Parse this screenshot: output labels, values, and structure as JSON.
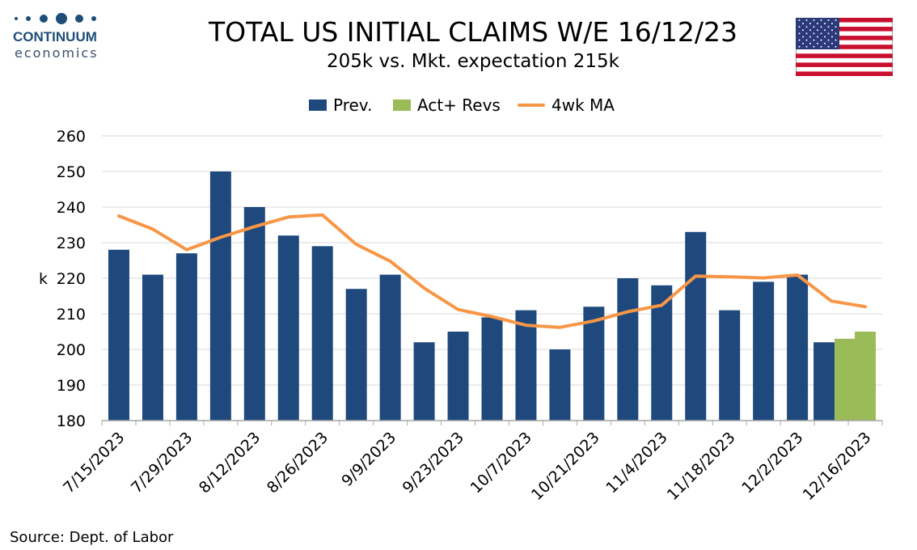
{
  "header": {
    "title": "TOTAL US INITIAL CLAIMS W/E 16/12/23",
    "subtitle": "205k vs. Mkt. expectation 215k"
  },
  "logo": {
    "brand": "CONTINUUM",
    "sub": "economics",
    "color": "#1f4e79"
  },
  "flag_icon": "us-flag-icon",
  "footer": {
    "source": "Source: Dept. of Labor"
  },
  "chart_data": {
    "type": "bar",
    "title": "TOTAL US INITIAL CLAIMS W/E 16/12/23",
    "subtitle": "205k vs. Mkt. expectation 215k",
    "ylabel": "k",
    "xlabel": "",
    "ylim": [
      180,
      260
    ],
    "yticks": [
      180,
      190,
      200,
      210,
      220,
      230,
      240,
      250,
      260
    ],
    "grid": true,
    "legend": "top-center",
    "categories": [
      "7/15/2023",
      "7/22/2023",
      "7/29/2023",
      "8/5/2023",
      "8/12/2023",
      "8/19/2023",
      "8/26/2023",
      "9/2/2023",
      "9/9/2023",
      "9/16/2023",
      "9/23/2023",
      "9/30/2023",
      "10/7/2023",
      "10/14/2023",
      "10/21/2023",
      "10/28/2023",
      "11/4/2023",
      "11/11/2023",
      "11/18/2023",
      "11/25/2023",
      "12/2/2023",
      "12/9/2023",
      "12/16/2023"
    ],
    "tick_labels": [
      "7/15/2023",
      "7/29/2023",
      "8/12/2023",
      "8/26/2023",
      "9/9/2023",
      "9/23/2023",
      "10/7/2023",
      "10/21/2023",
      "11/4/2023",
      "11/18/2023",
      "12/2/2023",
      "12/16/2023"
    ],
    "series": [
      {
        "name": "Prev.",
        "kind": "bar",
        "color": "#1f497d",
        "values": [
          228,
          221,
          227,
          250,
          240,
          232,
          229,
          217,
          221,
          202,
          205,
          209,
          211,
          200,
          212,
          220,
          218,
          233,
          211,
          219,
          221,
          202,
          null
        ]
      },
      {
        "name": "Act+ Revs",
        "kind": "bar",
        "color": "#9bbb59",
        "values": [
          null,
          null,
          null,
          null,
          null,
          null,
          null,
          null,
          null,
          null,
          null,
          null,
          null,
          null,
          null,
          null,
          null,
          null,
          null,
          null,
          null,
          203,
          205
        ]
      },
      {
        "name": "4wk MA",
        "kind": "line",
        "color": "#f79646",
        "values": [
          237.5,
          233.8,
          228.0,
          231.5,
          234.5,
          237.2,
          237.8,
          229.5,
          224.8,
          217.2,
          211.2,
          209.2,
          206.8,
          206.2,
          208.0,
          210.6,
          212.4,
          220.6,
          220.4,
          220.1,
          220.9,
          213.6,
          212.0
        ]
      }
    ]
  }
}
